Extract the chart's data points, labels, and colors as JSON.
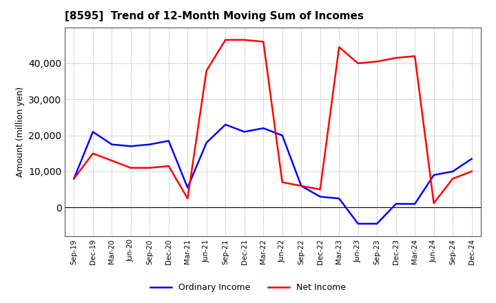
{
  "title": "[8595]  Trend of 12-Month Moving Sum of Incomes",
  "ylabel": "Amount (million yen)",
  "x_labels": [
    "Sep-19",
    "Dec-19",
    "Mar-20",
    "Jun-20",
    "Sep-20",
    "Dec-20",
    "Mar-21",
    "Jun-21",
    "Sep-21",
    "Dec-21",
    "Mar-22",
    "Jun-22",
    "Sep-22",
    "Dec-22",
    "Mar-23",
    "Jun-23",
    "Sep-23",
    "Dec-23",
    "Mar-24",
    "Jun-24",
    "Sep-24",
    "Dec-24"
  ],
  "ordinary_income": [
    8000,
    21000,
    17500,
    17000,
    17500,
    18500,
    5500,
    18000,
    23000,
    21000,
    22000,
    20000,
    6000,
    3000,
    2500,
    -4500,
    -4500,
    1000,
    1000,
    9000,
    10000,
    13500
  ],
  "net_income": [
    8000,
    15000,
    13000,
    11000,
    11000,
    11500,
    2500,
    38000,
    46500,
    46500,
    46000,
    7000,
    6000,
    5000,
    44500,
    40000,
    40500,
    41500,
    42000,
    1200,
    8000,
    10000
  ],
  "ordinary_color": "#0000FF",
  "net_color": "#FF0000",
  "ylim_min": -8000,
  "ylim_max": 50000,
  "yticks": [
    0,
    10000,
    20000,
    30000,
    40000
  ],
  "background_color": "#FFFFFF",
  "plot_bg_color": "#FFFFFF"
}
